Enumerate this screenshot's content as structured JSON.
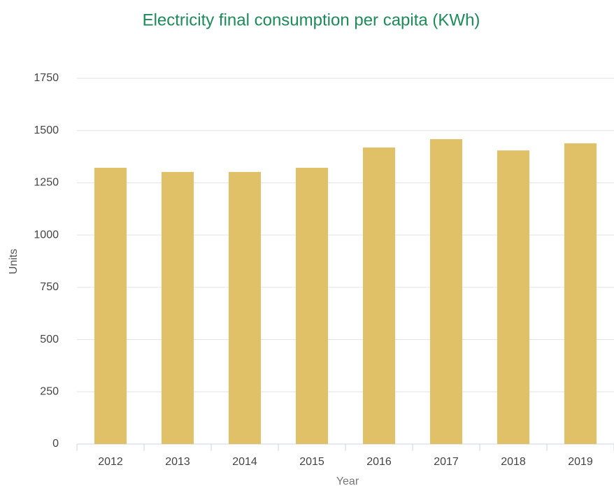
{
  "chart_data": {
    "type": "bar",
    "title": "Electricity final consumption per capita (KWh)",
    "x_label": "Year",
    "y_label": "Units",
    "categories": [
      "2012",
      "2013",
      "2014",
      "2015",
      "2016",
      "2017",
      "2018",
      "2019"
    ],
    "values": [
      1322,
      1302,
      1302,
      1322,
      1419,
      1459,
      1405,
      1439
    ],
    "color": "#e0c167",
    "ylim": [
      0,
      1750
    ],
    "yticks": [
      0,
      250,
      500,
      750,
      1000,
      1250,
      1500,
      1750
    ],
    "grid": true
  }
}
